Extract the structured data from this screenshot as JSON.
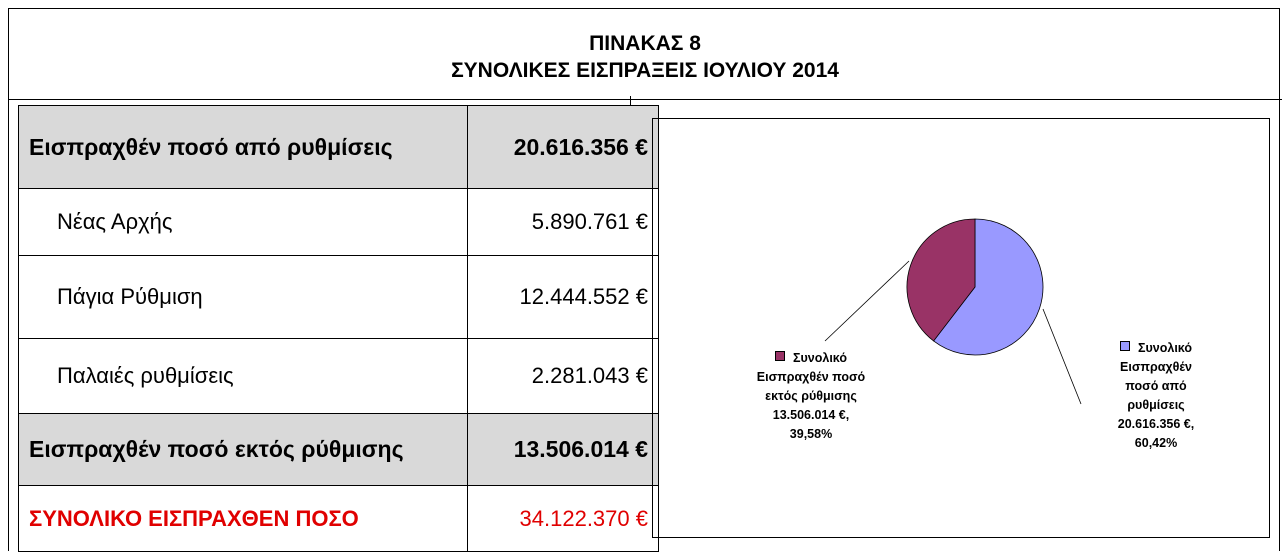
{
  "header": {
    "title": "ΠΙΝΑΚΑΣ 8",
    "subtitle": "ΣΥΝΟΛΙΚΕΣ ΕΙΣΠΡΑΞΕΙΣ ΙΟΥΛΙΟΥ 2014"
  },
  "table": {
    "rows": [
      [
        "Εισπραχθέν ποσό από ρυθμίσεις",
        "20.616.356 €"
      ],
      [
        "Νέας Αρχής",
        "5.890.761 €"
      ],
      [
        "Πάγια Ρύθμιση",
        "12.444.552 €"
      ],
      [
        "Παλαιές ρυθμίσεις",
        "2.281.043 €"
      ],
      [
        "Εισπραχθέν ποσό εκτός ρύθμισης",
        "13.506.014 €"
      ],
      [
        "ΣΥΝΟΛΙΚΟ ΕΙΣΠΡΑΧΘΕΝ ΠΟΣΟ",
        "34.122.370 €"
      ]
    ]
  },
  "chart_data": {
    "type": "pie",
    "categories": [
      "Συνολικό Εισπραχθέν ποσό από ρυθμίσεις",
      "Συνολικό Εισπραχθέν ποσό εκτός ρύθμισης"
    ],
    "values": [
      60.42,
      39.58
    ],
    "value_labels": [
      "60,42%",
      "39,58%"
    ],
    "amount_labels": [
      "20.616.356 €,",
      "13.506.014 €,"
    ],
    "colors": [
      "#9999ff",
      "#993366"
    ]
  }
}
